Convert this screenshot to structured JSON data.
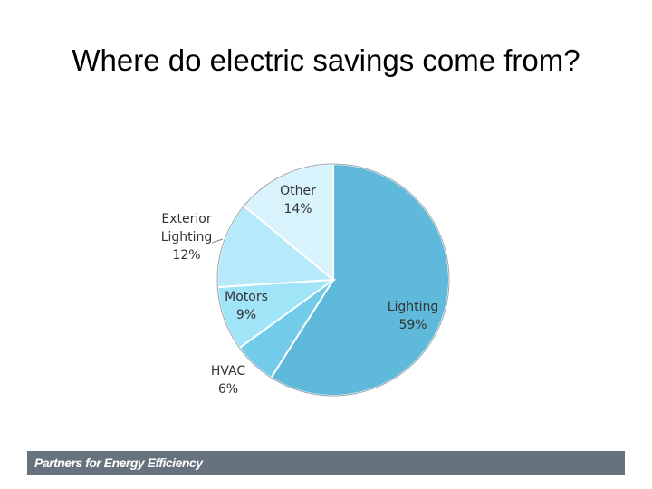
{
  "chart_data": {
    "type": "pie",
    "title": "Where do electric savings come from?",
    "categories": [
      "Lighting",
      "HVAC",
      "Motors",
      "Exterior Lighting",
      "Other"
    ],
    "values": [
      59,
      6,
      9,
      12,
      14
    ],
    "value_labels": [
      "59%",
      "6%",
      "9%",
      "12%",
      "14%"
    ],
    "colors": [
      "#5fb9da",
      "#72cbe9",
      "#9fe4f7",
      "#b6eafa",
      "#d8f3fb"
    ]
  },
  "footer": "Partners for Energy Efficiency"
}
